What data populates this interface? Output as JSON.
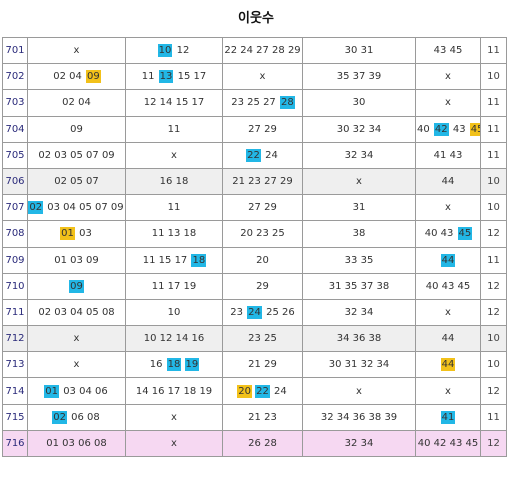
{
  "title": "이웃수",
  "colors": {
    "blue_highlight": "#22b7e6",
    "yellow_highlight": "#f2c11a",
    "gray_row": "#efefef",
    "pink_row": "#f6d8f2",
    "round_text": "#2a2a7a"
  },
  "rows": [
    {
      "round": "701",
      "shade": "",
      "count": "11",
      "cells": [
        [
          {
            "t": "x"
          }
        ],
        [
          {
            "t": "10",
            "h": "b"
          },
          {
            "t": "12"
          }
        ],
        [
          {
            "t": "22 24 27 28 29"
          }
        ],
        [
          {
            "t": "30 31"
          }
        ],
        [
          {
            "t": "43 45"
          }
        ]
      ]
    },
    {
      "round": "702",
      "shade": "",
      "count": "10",
      "cells": [
        [
          {
            "t": "02 04"
          },
          {
            "t": "09",
            "h": "y"
          }
        ],
        [
          {
            "t": "11"
          },
          {
            "t": "13",
            "h": "b"
          },
          {
            "t": "15 17"
          }
        ],
        [
          {
            "t": "x"
          }
        ],
        [
          {
            "t": "35 37 39"
          }
        ],
        [
          {
            "t": "x"
          }
        ]
      ]
    },
    {
      "round": "703",
      "shade": "",
      "count": "11",
      "cells": [
        [
          {
            "t": "02 04"
          }
        ],
        [
          {
            "t": "12 14 15 17"
          }
        ],
        [
          {
            "t": "23 25 27"
          },
          {
            "t": "28",
            "h": "b"
          }
        ],
        [
          {
            "t": "30"
          }
        ],
        [
          {
            "t": "x"
          }
        ]
      ]
    },
    {
      "round": "704",
      "shade": "",
      "count": "11",
      "cells": [
        [
          {
            "t": "09"
          }
        ],
        [
          {
            "t": "11"
          }
        ],
        [
          {
            "t": "27 29"
          }
        ],
        [
          {
            "t": "30 32 34"
          }
        ],
        [
          {
            "t": "40"
          },
          {
            "t": "42",
            "h": "b"
          },
          {
            "t": "43"
          },
          {
            "t": "45",
            "h": "y"
          }
        ]
      ]
    },
    {
      "round": "705",
      "shade": "",
      "count": "11",
      "cells": [
        [
          {
            "t": "02 03 05 07 09"
          }
        ],
        [
          {
            "t": "x"
          }
        ],
        [
          {
            "t": "22",
            "h": "b"
          },
          {
            "t": "24"
          }
        ],
        [
          {
            "t": "32 34"
          }
        ],
        [
          {
            "t": "41 43"
          }
        ]
      ]
    },
    {
      "round": "706",
      "shade": "gray",
      "count": "10",
      "cells": [
        [
          {
            "t": "02 05 07"
          }
        ],
        [
          {
            "t": "16 18"
          }
        ],
        [
          {
            "t": "21 23 27 29"
          }
        ],
        [
          {
            "t": "x"
          }
        ],
        [
          {
            "t": "44"
          }
        ]
      ]
    },
    {
      "round": "707",
      "shade": "",
      "count": "10",
      "cells": [
        [
          {
            "t": "02",
            "h": "b"
          },
          {
            "t": "03 04 05 07 09"
          }
        ],
        [
          {
            "t": "11"
          }
        ],
        [
          {
            "t": "27 29"
          }
        ],
        [
          {
            "t": "31"
          }
        ],
        [
          {
            "t": "x"
          }
        ]
      ]
    },
    {
      "round": "708",
      "shade": "",
      "count": "12",
      "cells": [
        [
          {
            "t": "01",
            "h": "y"
          },
          {
            "t": "03"
          }
        ],
        [
          {
            "t": "11 13 18"
          }
        ],
        [
          {
            "t": "20 23 25"
          }
        ],
        [
          {
            "t": "38"
          }
        ],
        [
          {
            "t": "40 43"
          },
          {
            "t": "45",
            "h": "b"
          }
        ]
      ]
    },
    {
      "round": "709",
      "shade": "",
      "count": "11",
      "cells": [
        [
          {
            "t": "01 03 09"
          }
        ],
        [
          {
            "t": "11 15 17"
          },
          {
            "t": "18",
            "h": "b"
          }
        ],
        [
          {
            "t": "20"
          }
        ],
        [
          {
            "t": "33 35"
          }
        ],
        [
          {
            "t": "44",
            "h": "b"
          }
        ]
      ]
    },
    {
      "round": "710",
      "shade": "",
      "count": "12",
      "cells": [
        [
          {
            "t": "09",
            "h": "b"
          }
        ],
        [
          {
            "t": "11 17 19"
          }
        ],
        [
          {
            "t": "29"
          }
        ],
        [
          {
            "t": "31 35 37 38"
          }
        ],
        [
          {
            "t": "40 43 45"
          }
        ]
      ]
    },
    {
      "round": "711",
      "shade": "",
      "count": "12",
      "cells": [
        [
          {
            "t": "02 03 04 05 08"
          }
        ],
        [
          {
            "t": "10"
          }
        ],
        [
          {
            "t": "23"
          },
          {
            "t": "24",
            "h": "b"
          },
          {
            "t": "25 26"
          }
        ],
        [
          {
            "t": "32 34"
          }
        ],
        [
          {
            "t": "x"
          }
        ]
      ]
    },
    {
      "round": "712",
      "shade": "gray",
      "count": "10",
      "cells": [
        [
          {
            "t": "x"
          }
        ],
        [
          {
            "t": "10 12 14 16"
          }
        ],
        [
          {
            "t": "23 25"
          }
        ],
        [
          {
            "t": "34 36 38"
          }
        ],
        [
          {
            "t": "44"
          }
        ]
      ]
    },
    {
      "round": "713",
      "shade": "",
      "count": "10",
      "cells": [
        [
          {
            "t": "x"
          }
        ],
        [
          {
            "t": "16"
          },
          {
            "t": "18",
            "h": "b"
          },
          {
            "t": "19",
            "h": "b"
          }
        ],
        [
          {
            "t": "21 29"
          }
        ],
        [
          {
            "t": "30 31 32 34"
          }
        ],
        [
          {
            "t": "44",
            "h": "y"
          }
        ]
      ]
    },
    {
      "round": "714",
      "shade": "",
      "count": "12",
      "cells": [
        [
          {
            "t": "01",
            "h": "b"
          },
          {
            "t": "03 04 06"
          }
        ],
        [
          {
            "t": "14 16 17 18 19"
          }
        ],
        [
          {
            "t": "20",
            "h": "y"
          },
          {
            "t": "22",
            "h": "b"
          },
          {
            "t": "24"
          }
        ],
        [
          {
            "t": "x"
          }
        ],
        [
          {
            "t": "x"
          }
        ]
      ]
    },
    {
      "round": "715",
      "shade": "",
      "count": "11",
      "cells": [
        [
          {
            "t": "02",
            "h": "b"
          },
          {
            "t": "06 08"
          }
        ],
        [
          {
            "t": "x"
          }
        ],
        [
          {
            "t": "21 23"
          }
        ],
        [
          {
            "t": "32 34 36 38 39"
          }
        ],
        [
          {
            "t": "41",
            "h": "b"
          }
        ]
      ]
    },
    {
      "round": "716",
      "shade": "pink",
      "count": "12",
      "cells": [
        [
          {
            "t": "01 03 06 08"
          }
        ],
        [
          {
            "t": "x"
          }
        ],
        [
          {
            "t": "26 28"
          }
        ],
        [
          {
            "t": "32 34"
          }
        ],
        [
          {
            "t": "40 42 43 45"
          }
        ]
      ]
    }
  ]
}
